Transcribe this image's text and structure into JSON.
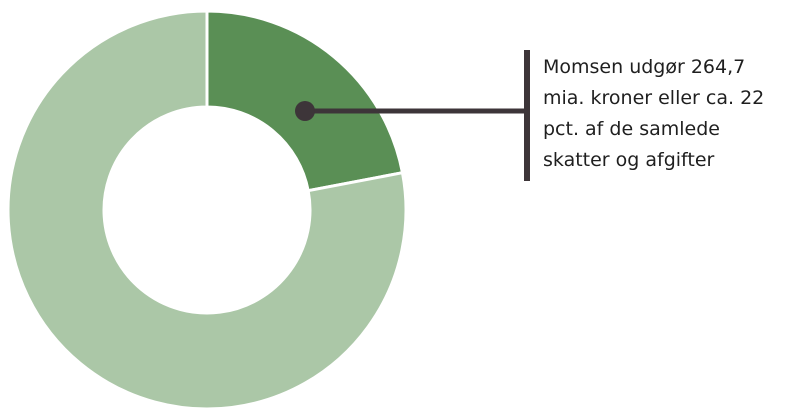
{
  "chart_data": {
    "type": "pie",
    "donut": true,
    "slices": [
      {
        "label": "",
        "value": 22,
        "color": "#5a8f55"
      },
      {
        "label": "",
        "value": 78,
        "color": "#abc7a7"
      }
    ],
    "annotation": {
      "lines": [
        "Momsen udgør 264,7",
        "mia. kroner eller ca. 22",
        "pct. af de samlede",
        "skatter og afgifter"
      ],
      "target_slice": 0,
      "line_color": "#3d3539"
    }
  }
}
